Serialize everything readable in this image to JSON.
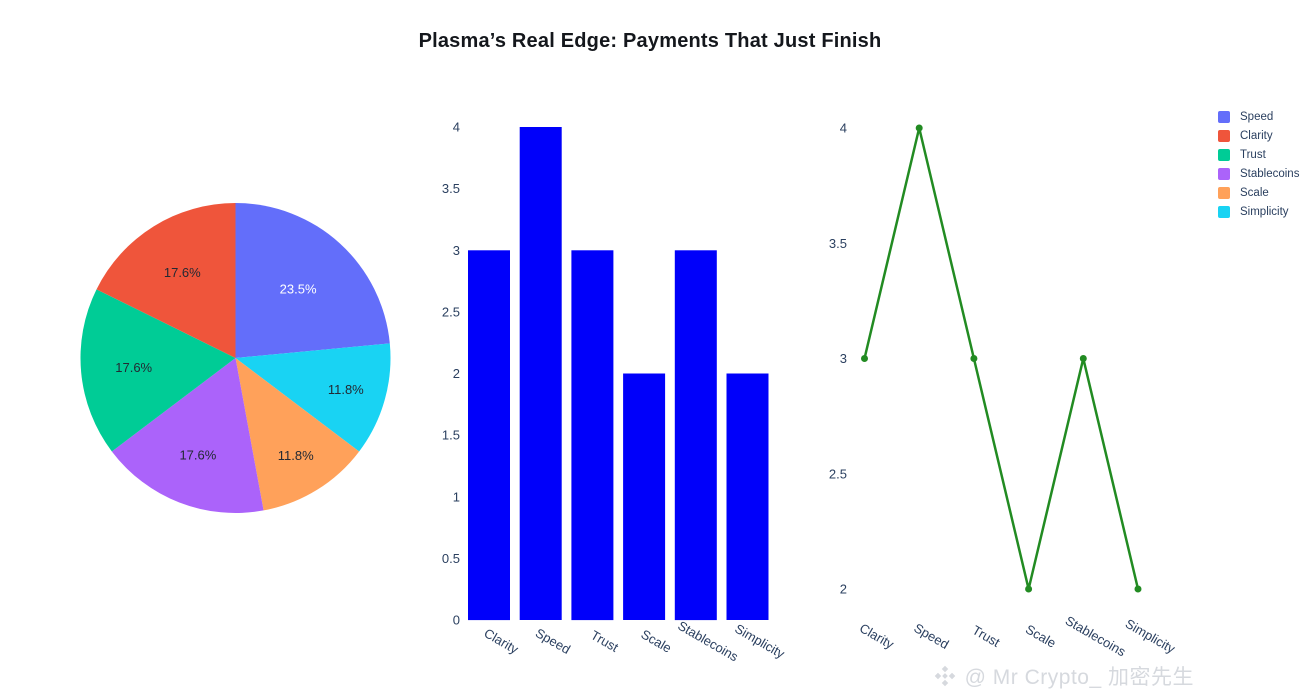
{
  "title": "Plasma’s Real Edge: Payments That Just Finish",
  "background": "#ffffff",
  "legend": {
    "position": "top-right",
    "items": [
      {
        "label": "Speed",
        "color": "#636EFA"
      },
      {
        "label": "Clarity",
        "color": "#EF553B"
      },
      {
        "label": "Trust",
        "color": "#00CC96"
      },
      {
        "label": "Stablecoins",
        "color": "#AB63FA"
      },
      {
        "label": "Scale",
        "color": "#FFA15A"
      },
      {
        "label": "Simplicity",
        "color": "#19D3F3"
      }
    ]
  },
  "watermark": {
    "icon": "binance-diamond-icon",
    "text": "@ Mr Crypto_ 加密先生"
  },
  "chart_data": [
    {
      "type": "pie",
      "order": "clockwise-from-top",
      "slices": [
        {
          "label": "Speed",
          "percent": 23.5,
          "percent_label": "23.5%",
          "color": "#636EFA",
          "text_color": "#ffffff",
          "label_r": 0.6
        },
        {
          "label": "Simplicity",
          "percent": 11.8,
          "percent_label": "11.8%",
          "color": "#19D3F3",
          "text_color": "#232933",
          "label_r": 0.74
        },
        {
          "label": "Scale",
          "percent": 11.8,
          "percent_label": "11.8%",
          "color": "#FFA15A",
          "text_color": "#232933",
          "label_r": 0.74
        },
        {
          "label": "Stablecoins",
          "percent": 17.6,
          "percent_label": "17.6%",
          "color": "#AB63FA",
          "text_color": "#232933",
          "label_r": 0.67
        },
        {
          "label": "Trust",
          "percent": 17.6,
          "percent_label": "17.6%",
          "color": "#00CC96",
          "text_color": "#232933",
          "label_r": 0.66
        },
        {
          "label": "Clarity",
          "percent": 17.6,
          "percent_label": "17.6%",
          "color": "#EF553B",
          "text_color": "#232933",
          "label_r": 0.65
        }
      ]
    },
    {
      "type": "bar",
      "categories": [
        "Clarity",
        "Speed",
        "Trust",
        "Scale",
        "Stablecoins",
        "Simplicity"
      ],
      "values": [
        3,
        4,
        3,
        2,
        3,
        2
      ],
      "bar_color": "#0000FA",
      "yticks": [
        0,
        0.5,
        1,
        1.5,
        2,
        2.5,
        3,
        3.5,
        4
      ],
      "ylim": [
        0,
        4
      ],
      "grid": false,
      "xlabel": "",
      "ylabel": ""
    },
    {
      "type": "line",
      "categories": [
        "Clarity",
        "Speed",
        "Trust",
        "Scale",
        "Stablecoins",
        "Simplicity"
      ],
      "values": [
        3,
        4,
        3,
        2,
        3,
        2
      ],
      "line_color": "#228B22",
      "marker": "circle",
      "yticks": [
        2,
        2.5,
        3,
        3.5,
        4
      ],
      "ylim": [
        2,
        4
      ],
      "grid": false,
      "xlabel": "",
      "ylabel": ""
    }
  ]
}
